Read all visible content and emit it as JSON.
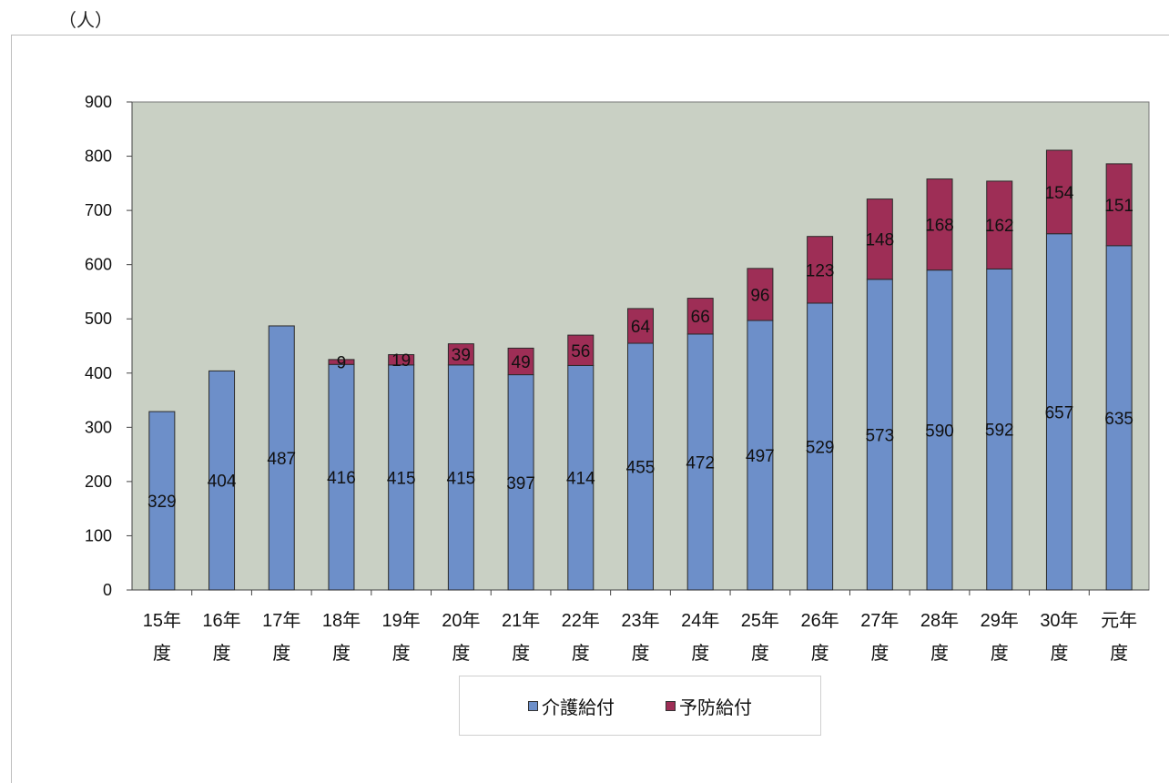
{
  "chart_data": {
    "type": "bar",
    "stacked": true,
    "unit_label": "（人）",
    "categories": [
      "15年度",
      "16年度",
      "17年度",
      "18年度",
      "19年度",
      "20年度",
      "21年度",
      "22年度",
      "23年度",
      "24年度",
      "25年度",
      "26年度",
      "27年度",
      "28年度",
      "29年度",
      "30年度",
      "元年度"
    ],
    "series": [
      {
        "name": "介護給付",
        "color": "#6d8fc9",
        "values": [
          329,
          404,
          487,
          416,
          415,
          415,
          397,
          414,
          455,
          472,
          497,
          529,
          573,
          590,
          592,
          657,
          635
        ]
      },
      {
        "name": "予防給付",
        "color": "#9e2e56",
        "values": [
          null,
          null,
          null,
          9,
          19,
          39,
          49,
          56,
          64,
          66,
          96,
          123,
          148,
          168,
          162,
          154,
          151
        ]
      }
    ],
    "ylim": [
      0,
      900
    ],
    "yticks": [
      0,
      100,
      200,
      300,
      400,
      500,
      600,
      700,
      800,
      900
    ],
    "grid": false,
    "legend_position": "bottom",
    "plot_background": "#c9d0c4"
  }
}
